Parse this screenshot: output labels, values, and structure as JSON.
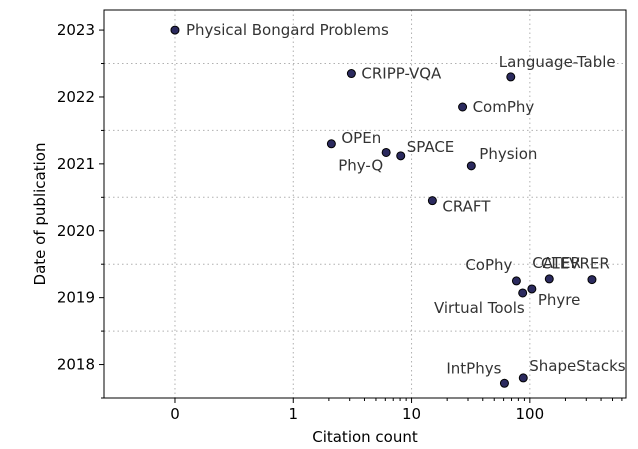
{
  "chart_data": {
    "type": "scatter",
    "xlabel": "Citation count",
    "ylabel": "Date of publication",
    "x_scale": "symlog",
    "xlim": [
      -0.6,
      650
    ],
    "ylim": [
      2017.5,
      2023.3
    ],
    "grid": true,
    "marker_color": "#2b2a5e",
    "x_ticks": [
      {
        "value": 0,
        "label": "0"
      },
      {
        "value": 1,
        "label": "1"
      },
      {
        "value": 10,
        "label": "10"
      },
      {
        "value": 100,
        "label": "100"
      }
    ],
    "y_ticks": [
      {
        "value": 2018,
        "label": "2018"
      },
      {
        "value": 2019,
        "label": "2019"
      },
      {
        "value": 2020,
        "label": "2020"
      },
      {
        "value": 2021,
        "label": "2021"
      },
      {
        "value": 2022,
        "label": "2022"
      },
      {
        "value": 2023,
        "label": "2023"
      }
    ],
    "points": [
      {
        "name": "Physical Bongard Problems",
        "x": 0,
        "y": 2023.0
      },
      {
        "name": "CRIPP-VQA",
        "x": 3.1,
        "y": 2022.35
      },
      {
        "name": "Language-Table",
        "x": 69,
        "y": 2022.3
      },
      {
        "name": "ComPhy",
        "x": 27,
        "y": 2021.85
      },
      {
        "name": "OPEn",
        "x": 2.1,
        "y": 2021.3
      },
      {
        "name": "Phy-Q",
        "x": 6.1,
        "y": 2021.17
      },
      {
        "name": "SPACE",
        "x": 8.1,
        "y": 2021.12
      },
      {
        "name": "Physion",
        "x": 32,
        "y": 2020.97
      },
      {
        "name": "CRAFT",
        "x": 15,
        "y": 2020.45
      },
      {
        "name": "CoPhy",
        "x": 77,
        "y": 2019.25
      },
      {
        "name": "CATER",
        "x": 146,
        "y": 2019.28
      },
      {
        "name": "CLEVRER",
        "x": 335,
        "y": 2019.27
      },
      {
        "name": "Virtual Tools",
        "x": 87,
        "y": 2019.07
      },
      {
        "name": "Phyre",
        "x": 104,
        "y": 2019.13
      },
      {
        "name": "IntPhys",
        "x": 61,
        "y": 2017.72
      },
      {
        "name": "ShapeStacks",
        "x": 88,
        "y": 2017.8
      }
    ]
  }
}
